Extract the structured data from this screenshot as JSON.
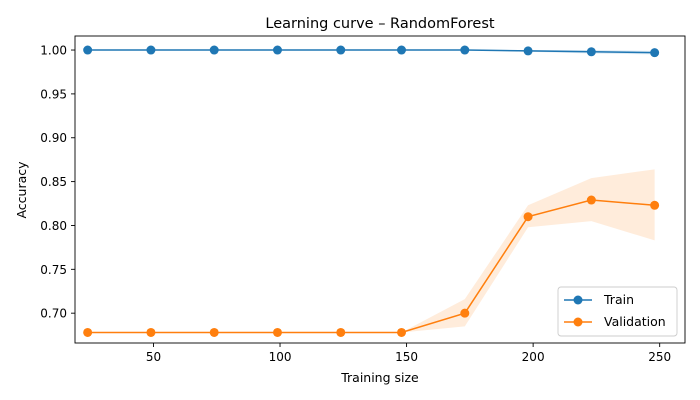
{
  "chart_data": {
    "type": "line",
    "title": "Learning curve – RandomForest",
    "xlabel": "Training size",
    "ylabel": "Accuracy",
    "xlim": [
      19,
      260
    ],
    "ylim": [
      0.666,
      1.016
    ],
    "x_ticks": [
      50,
      100,
      150,
      200,
      250
    ],
    "x_tick_labels": [
      "50",
      "100",
      "150",
      "200",
      "250"
    ],
    "y_ticks": [
      0.7,
      0.75,
      0.8,
      0.85,
      0.9,
      0.95,
      1.0
    ],
    "y_tick_labels": [
      "0.70",
      "0.75",
      "0.80",
      "0.85",
      "0.90",
      "0.95",
      "1.00"
    ],
    "grid": false,
    "legend_position": "lower-right",
    "x": [
      24,
      49,
      74,
      99,
      124,
      148,
      173,
      198,
      223,
      248
    ],
    "series": [
      {
        "name": "Train",
        "color": "#1f77b4",
        "values": [
          1.0,
          1.0,
          1.0,
          1.0,
          1.0,
          1.0,
          1.0,
          0.999,
          0.998,
          0.997
        ],
        "band_lower": [
          1.0,
          1.0,
          1.0,
          1.0,
          1.0,
          1.0,
          1.0,
          0.998,
          0.996,
          0.995
        ],
        "band_upper": [
          1.0,
          1.0,
          1.0,
          1.0,
          1.0,
          1.0,
          1.0,
          1.0,
          1.0,
          0.999
        ]
      },
      {
        "name": "Validation",
        "color": "#ff7f0e",
        "values": [
          0.678,
          0.678,
          0.678,
          0.678,
          0.678,
          0.678,
          0.7,
          0.81,
          0.829,
          0.823
        ],
        "band_lower": [
          0.678,
          0.678,
          0.678,
          0.678,
          0.678,
          0.678,
          0.685,
          0.798,
          0.805,
          0.783
        ],
        "band_upper": [
          0.678,
          0.678,
          0.678,
          0.678,
          0.678,
          0.678,
          0.716,
          0.823,
          0.854,
          0.864
        ]
      }
    ]
  }
}
